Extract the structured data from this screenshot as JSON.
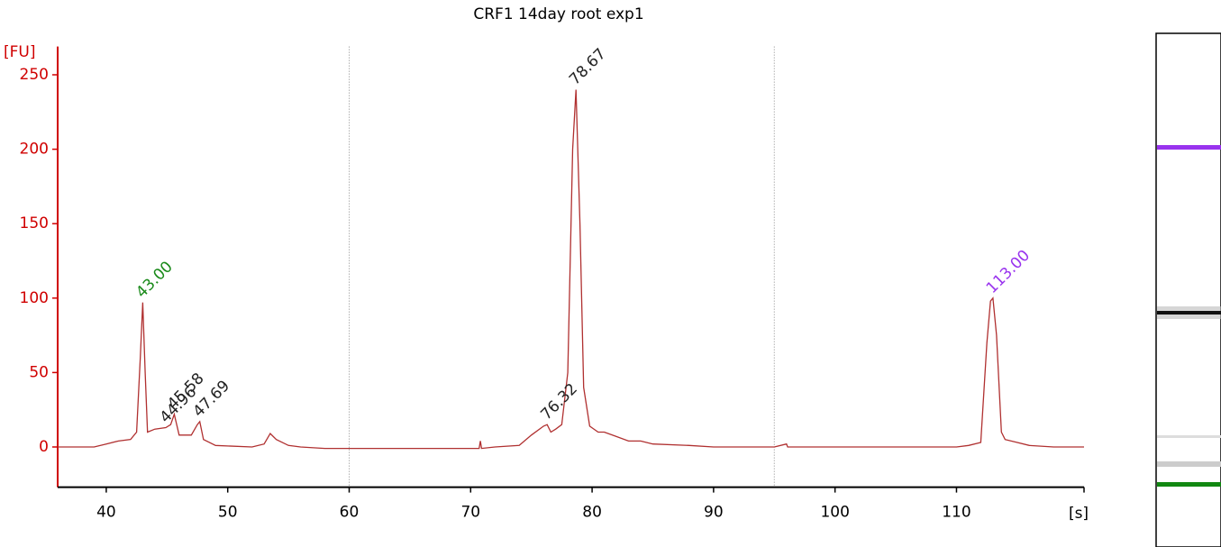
{
  "chart_data": {
    "type": "line",
    "title": "CRF1 14day root exp1",
    "y_label": "[FU]",
    "x_label": "[s]",
    "xlim": [
      36,
      120.5
    ],
    "ylim": [
      -27,
      269
    ],
    "xticks": [
      40,
      50,
      60,
      70,
      80,
      90,
      100,
      110
    ],
    "yticks": [
      0,
      50,
      100,
      150,
      200,
      250
    ],
    "vlines": [
      60,
      95
    ],
    "series": [
      {
        "color": "#b03030",
        "x": [
          36,
          39,
          40,
          41,
          42,
          42.5,
          42.8,
          43.0,
          43.2,
          43.4,
          44,
          44.9,
          45.3,
          45.6,
          46,
          47,
          47.5,
          47.7,
          48,
          49,
          52,
          53,
          53.5,
          54,
          55,
          56,
          58,
          60,
          70,
          70.7,
          70.8,
          70.9,
          72,
          74,
          75,
          76,
          76.3,
          76.6,
          77,
          77.5,
          78,
          78.4,
          78.67,
          79,
          79.3,
          79.8,
          80.5,
          81,
          82,
          83,
          84,
          85,
          88,
          90,
          95,
          96,
          96.1,
          100,
          105,
          110,
          111,
          112,
          112.5,
          112.8,
          113,
          113.3,
          113.7,
          114,
          115,
          116,
          118,
          120.5
        ],
        "values": [
          0,
          0,
          2,
          4,
          5,
          10,
          60,
          97,
          50,
          10,
          12,
          13,
          15,
          22,
          8,
          8,
          15,
          17,
          5,
          1,
          0,
          2,
          9,
          5,
          1,
          0,
          -1,
          -1,
          -1,
          -1,
          4,
          -1,
          0,
          1,
          8,
          14,
          15,
          10,
          12,
          15,
          50,
          200,
          240,
          150,
          40,
          14,
          10,
          10,
          7,
          4,
          4,
          2,
          1,
          0,
          0,
          2,
          0,
          0,
          0,
          0,
          1,
          3,
          70,
          98,
          100,
          75,
          10,
          5,
          3,
          1,
          0,
          0
        ]
      }
    ],
    "annotations": [
      {
        "text": "43.00",
        "x": 43.0,
        "y": 97,
        "color": "#1a8a1a"
      },
      {
        "text": "44.96",
        "x": 44.96,
        "y": 13,
        "color": "#222222"
      },
      {
        "text": "45.58",
        "x": 45.58,
        "y": 22,
        "color": "#222222"
      },
      {
        "text": "47.69",
        "x": 47.69,
        "y": 17,
        "color": "#222222"
      },
      {
        "text": "76.32",
        "x": 76.32,
        "y": 15,
        "color": "#222222"
      },
      {
        "text": "78.67",
        "x": 78.67,
        "y": 240,
        "color": "#222222"
      },
      {
        "text": "113.00",
        "x": 113.0,
        "y": 100,
        "color": "#9933ee"
      }
    ]
  }
}
